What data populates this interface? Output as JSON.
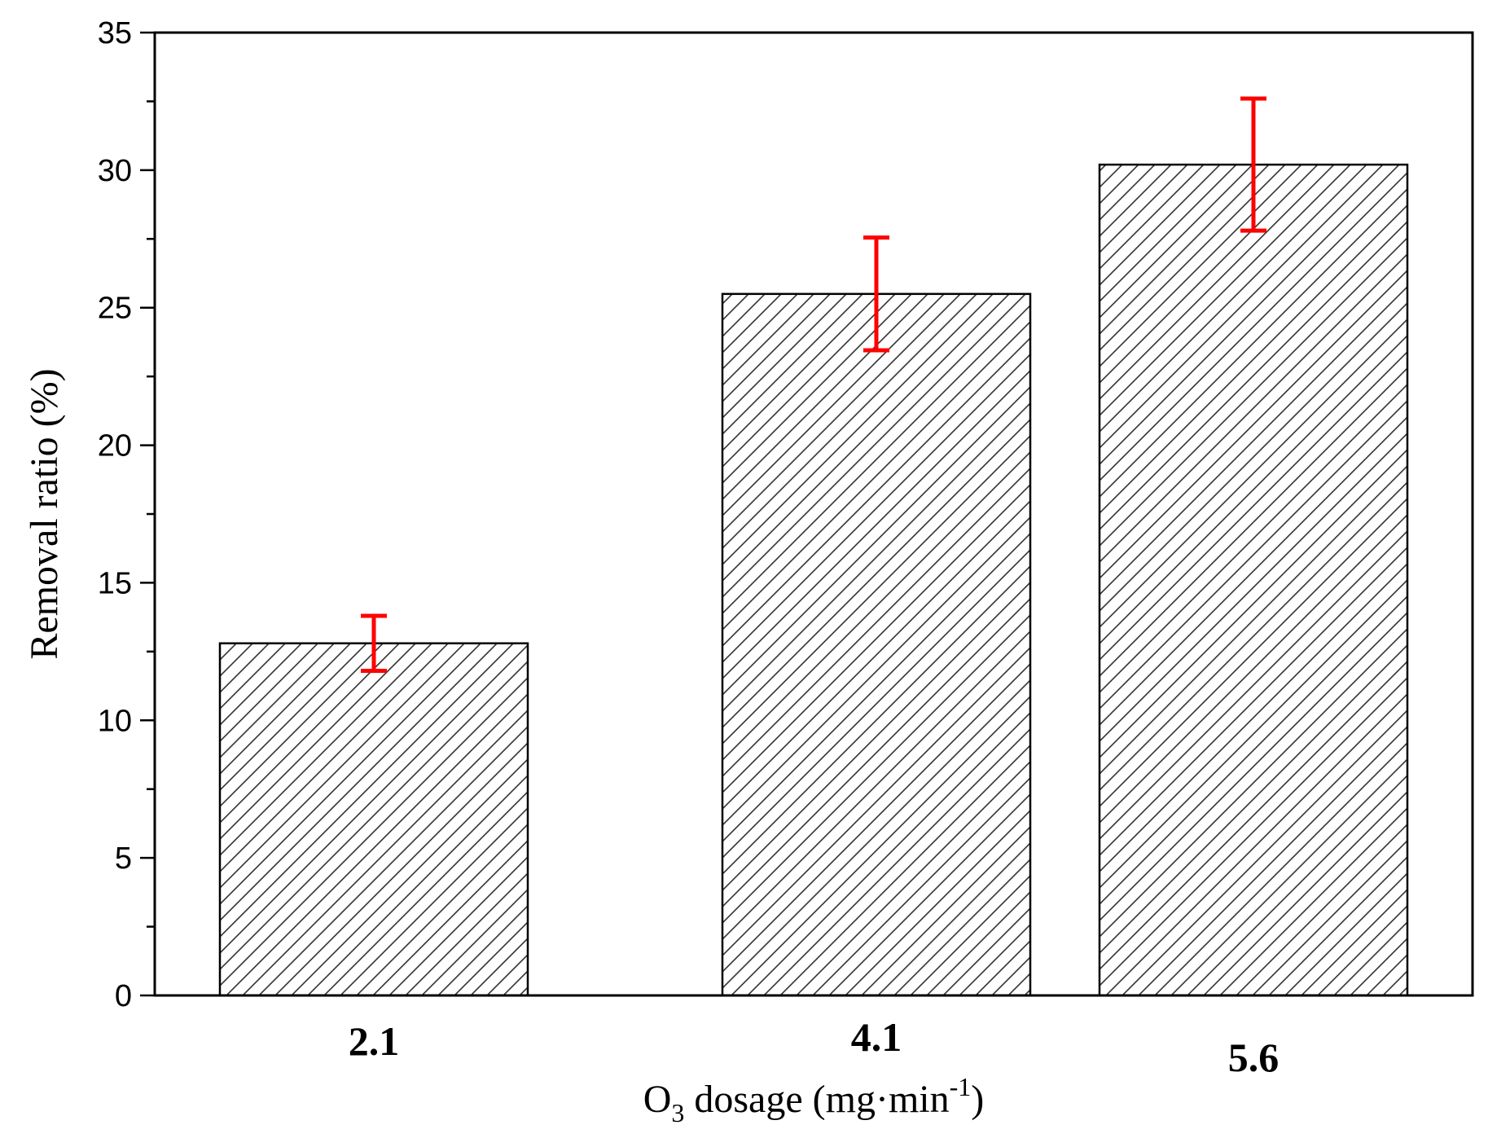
{
  "chart_data": {
    "type": "bar",
    "title": "",
    "categories": [
      "2.1",
      "4.1",
      "5.6"
    ],
    "values": [
      12.8,
      25.5,
      30.2
    ],
    "errors": [
      1.0,
      2.05,
      2.4
    ],
    "ylim": [
      0,
      35
    ],
    "yticks": [
      0,
      5,
      10,
      15,
      20,
      25,
      30,
      35
    ],
    "xlabel": {
      "main": "O",
      "sub": "3",
      "mid": " dosage (mg·min",
      "sup": "-1",
      "end": ")"
    },
    "ylabel": "Removal ratio  (%)",
    "grid": false,
    "bar_color": "#ffffff",
    "hatch_color": "#333333",
    "error_color": "#ff0000",
    "axis_color": "#000000"
  }
}
